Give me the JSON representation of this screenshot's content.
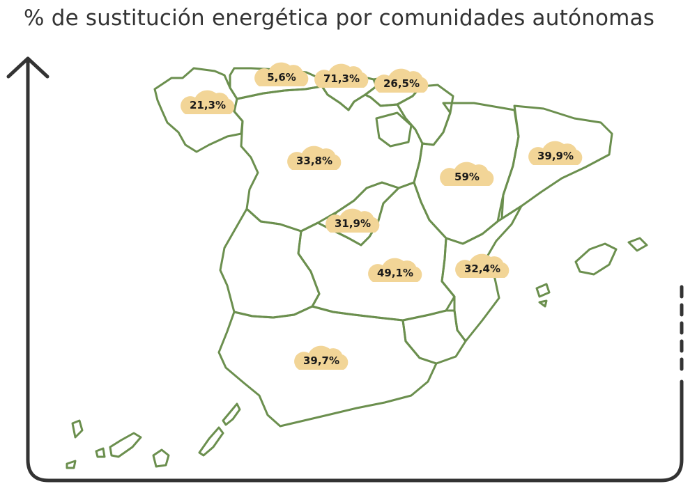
{
  "title": "% de sustitución energética por comunidades autónomas",
  "colors": {
    "region_outline": "#6b8f4e",
    "cloud": "#f2d597",
    "frame": "#333333",
    "label": "#1a1a1a"
  },
  "regions": [
    {
      "id": "galicia",
      "value": "21,3%"
    },
    {
      "id": "asturias",
      "value": "5,6%"
    },
    {
      "id": "cantabria",
      "value": "71,3%"
    },
    {
      "id": "pais-vasco",
      "value": "26,5%"
    },
    {
      "id": "castilla-y-leon",
      "value": "33,8%"
    },
    {
      "id": "aragon",
      "value": "59%"
    },
    {
      "id": "cataluna",
      "value": "39,9%"
    },
    {
      "id": "madrid",
      "value": "31,9%"
    },
    {
      "id": "castilla-la-mancha",
      "value": "49,1%"
    },
    {
      "id": "comunidad-valenciana",
      "value": "32,4%"
    },
    {
      "id": "andalucia",
      "value": "39,7%"
    }
  ]
}
